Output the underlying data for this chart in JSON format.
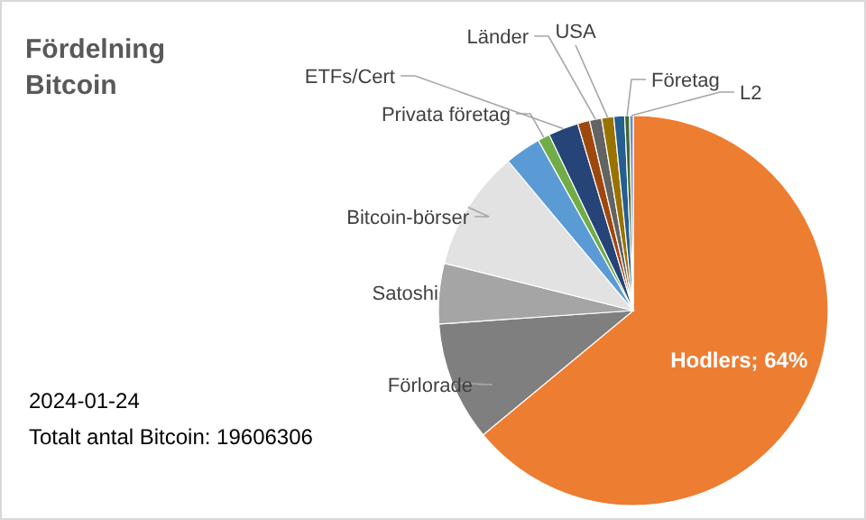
{
  "chart_data": {
    "type": "pie",
    "title": "Fördelning Bitcoin",
    "categories": [
      "Hodlers",
      "Förlorade",
      "Satoshi",
      "Bitcoin-börser",
      null,
      "Privata företag",
      "ETFs/Cert",
      null,
      "Länder",
      "USA",
      null,
      "Företag",
      "L2"
    ],
    "values": [
      64,
      9.9,
      5,
      10,
      3,
      1,
      2.5,
      1,
      1,
      1,
      0.9,
      0.4,
      0.3
    ],
    "colors": [
      "#ed7d31",
      "#7f7f7f",
      "#a5a5a5",
      "#e2e2e2",
      "#5b9bd5",
      "#70ad47",
      "#264478",
      "#9e480e",
      "#636363",
      "#997300",
      "#255e91",
      "#43682b",
      "#698ed0"
    ],
    "value_labels": [
      "64%",
      null,
      null,
      null,
      null,
      null,
      null,
      null,
      null,
      null,
      null,
      null,
      null
    ],
    "annotations": [
      "2024-01-24",
      "Totalt antal Bitcoin: 19606306"
    ]
  }
}
